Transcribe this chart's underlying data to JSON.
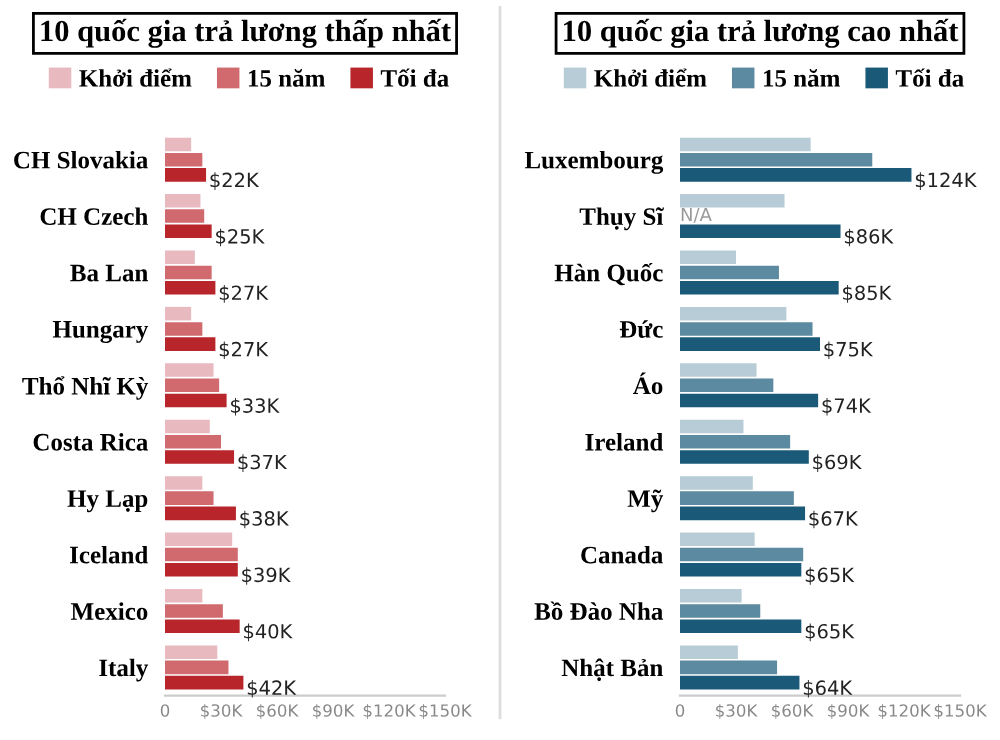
{
  "chart_data": [
    {
      "type": "bar",
      "orientation": "horizontal",
      "title": "10 quốc gia trả lương thấp nhất",
      "categories": [
        "CH Slovakia",
        "CH Czech",
        "Ba Lan",
        "Hungary",
        "Thổ Nhĩ Kỳ",
        "Costa Rica",
        "Hy Lạp",
        "Iceland",
        "Mexico",
        "Italy"
      ],
      "series": [
        {
          "name": "Khởi điểm",
          "color": "#e8b9bf",
          "values": [
            14,
            19,
            16,
            14,
            26,
            24,
            20,
            36,
            20,
            28
          ]
        },
        {
          "name": "15 năm",
          "color": "#d06a6e",
          "values": [
            20,
            21,
            25,
            20,
            29,
            30,
            26,
            39,
            31,
            34
          ]
        },
        {
          "name": "Tối đa",
          "color": "#b8262b",
          "values": [
            22,
            25,
            27,
            27,
            33,
            37,
            38,
            39,
            40,
            42
          ],
          "value_labels": [
            "$22K",
            "$25K",
            "$27K",
            "$27K",
            "$33K",
            "$37K",
            "$38K",
            "$39K",
            "$40K",
            "$42K"
          ]
        }
      ],
      "xlim": [
        0,
        150
      ],
      "xticks": [
        0,
        {
          "value": 30,
          "label": "$30K"
        },
        {
          "value": 60,
          "label": "$60K"
        },
        {
          "value": 90,
          "label": "$90K"
        },
        {
          "value": 120,
          "label": "$120K"
        },
        {
          "value": 150,
          "label": "$150K"
        }
      ],
      "grid": false,
      "legend": "top"
    },
    {
      "type": "bar",
      "orientation": "horizontal",
      "title": "10 quốc gia trả lương cao nhất",
      "categories": [
        "Luxembourg",
        "Thụy Sĩ",
        "Hàn Quốc",
        "Đức",
        "Áo",
        "Ireland",
        "Mỹ",
        "Canada",
        "Bồ Đào Nha",
        "Nhật Bản"
      ],
      "series": [
        {
          "name": "Khởi điểm",
          "color": "#b7ccd6",
          "values": [
            70,
            56,
            30,
            57,
            41,
            34,
            39,
            40,
            33,
            31
          ]
        },
        {
          "name": "15 năm",
          "color": "#5b8aa1",
          "values": [
            103,
            null,
            53,
            71,
            50,
            59,
            61,
            66,
            43,
            52
          ],
          "value_labels": [
            null,
            "N/A",
            null,
            null,
            null,
            null,
            null,
            null,
            null,
            null
          ]
        },
        {
          "name": "Tối đa",
          "color": "#1a5a78",
          "values": [
            124,
            86,
            85,
            75,
            74,
            69,
            67,
            65,
            65,
            64
          ],
          "value_labels": [
            "$124K",
            "$86K",
            "$85K",
            "$75K",
            "$74K",
            "$69K",
            "$67K",
            "$65K",
            "$65K",
            "$64K"
          ]
        }
      ],
      "xlim": [
        0,
        150
      ],
      "xticks": [
        0,
        {
          "value": 30,
          "label": "$30K"
        },
        {
          "value": 60,
          "label": "$60K"
        },
        {
          "value": 90,
          "label": "$90K"
        },
        {
          "value": 120,
          "label": "$120K"
        },
        {
          "value": 150,
          "label": "$150K"
        }
      ],
      "grid": false,
      "legend": "top"
    }
  ]
}
